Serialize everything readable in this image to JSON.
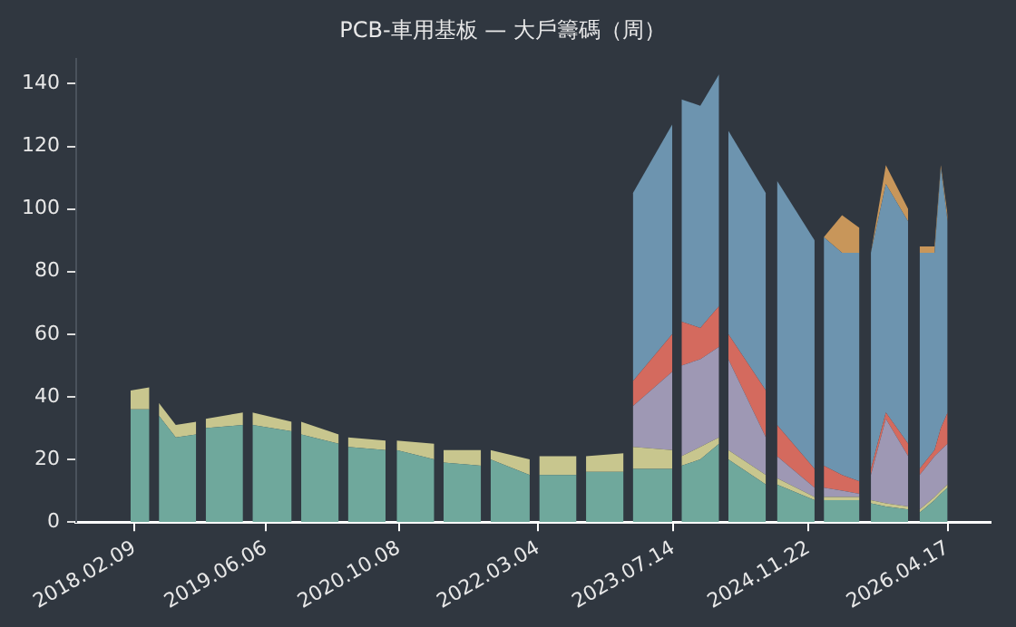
{
  "chart_data": {
    "type": "area",
    "stacked": true,
    "title": "PCB-車用基板 — 大戶籌碼（周）",
    "x": [
      "2018-01-26",
      "2018-04-05",
      "2018-04-22",
      "2018-05-10",
      "2018-07-11",
      "2018-09-24",
      "2018-10-11",
      "2018-10-29",
      "2019-03-15",
      "2019-04-02",
      "2019-04-19",
      "2019-09-10",
      "2019-09-28",
      "2019-10-15",
      "2020-03-01",
      "2020-03-18",
      "2020-04-04",
      "2020-08-20",
      "2020-09-10",
      "2020-09-30",
      "2021-02-15",
      "2021-03-04",
      "2021-03-21",
      "2021-08-06",
      "2021-08-23",
      "2021-09-10",
      "2022-02-01",
      "2022-02-18",
      "2022-03-08",
      "2022-07-23",
      "2022-08-10",
      "2022-08-27",
      "2023-01-12",
      "2023-01-29",
      "2023-02-15",
      "2023-07-10",
      "2023-07-27",
      "2023-08-13",
      "2023-10-21",
      "2023-12-29",
      "2024-01-15",
      "2024-02-01",
      "2024-06-18",
      "2024-07-09",
      "2024-07-29",
      "2024-12-14",
      "2024-12-31",
      "2025-01-17",
      "2025-03-25",
      "2025-05-28",
      "2025-06-18",
      "2025-07-09",
      "2025-09-02",
      "2025-11-23",
      "2025-12-14",
      "2026-01-04",
      "2026-02-28",
      "2026-03-23",
      "2026-04-17"
    ],
    "series": [
      {
        "color": "#6fa89c",
        "values": [
          36,
          36,
          null,
          34,
          27,
          28,
          null,
          30,
          31,
          null,
          31,
          29,
          null,
          28,
          25,
          null,
          24,
          23,
          null,
          23,
          20,
          null,
          19,
          18,
          null,
          20,
          15,
          null,
          15,
          15,
          null,
          16,
          16,
          null,
          17,
          17,
          null,
          18,
          20,
          25,
          null,
          20,
          12,
          null,
          12,
          7,
          null,
          7,
          7,
          7,
          null,
          6,
          5,
          4,
          null,
          3,
          7,
          9,
          11
        ]
      },
      {
        "color": "#c8c68e",
        "values": [
          6,
          7,
          null,
          4,
          4,
          4,
          null,
          3,
          4,
          null,
          4,
          3,
          null,
          4,
          3,
          null,
          3,
          3,
          null,
          3,
          5,
          null,
          4,
          5,
          null,
          3,
          5,
          null,
          6,
          6,
          null,
          5,
          6,
          null,
          7,
          6,
          null,
          3,
          4,
          2,
          null,
          3,
          3,
          null,
          2,
          1,
          null,
          1,
          1,
          1,
          null,
          1,
          1,
          1,
          null,
          1,
          1,
          1,
          1
        ]
      },
      {
        "color": "#9e98b4",
        "values": [
          null,
          null,
          null,
          null,
          null,
          null,
          null,
          null,
          null,
          null,
          null,
          null,
          null,
          null,
          null,
          null,
          null,
          null,
          null,
          null,
          null,
          null,
          null,
          null,
          null,
          null,
          null,
          null,
          null,
          null,
          null,
          null,
          null,
          null,
          13,
          25,
          null,
          29,
          28,
          29,
          null,
          29,
          12,
          null,
          7,
          3,
          null,
          3,
          2,
          1,
          null,
          8,
          27,
          16,
          null,
          11,
          13,
          13,
          13
        ]
      },
      {
        "color": "#d46a5e",
        "values": [
          null,
          null,
          null,
          null,
          null,
          null,
          null,
          null,
          null,
          null,
          null,
          null,
          null,
          null,
          null,
          null,
          null,
          null,
          null,
          null,
          null,
          null,
          null,
          null,
          null,
          null,
          null,
          null,
          null,
          null,
          null,
          null,
          null,
          null,
          8,
          12,
          null,
          14,
          10,
          13,
          null,
          8,
          15,
          null,
          10,
          6,
          null,
          7,
          5,
          4,
          null,
          2,
          2,
          4,
          null,
          2,
          2,
          7,
          10
        ]
      },
      {
        "color": "#6d94af",
        "values": [
          null,
          null,
          null,
          null,
          null,
          null,
          null,
          null,
          null,
          null,
          null,
          null,
          null,
          null,
          null,
          null,
          null,
          null,
          null,
          null,
          null,
          null,
          null,
          null,
          null,
          null,
          null,
          null,
          null,
          null,
          null,
          null,
          null,
          null,
          60,
          67,
          null,
          71,
          71,
          74,
          null,
          65,
          63,
          null,
          78,
          73,
          null,
          73,
          71,
          73,
          null,
          69,
          73,
          71,
          null,
          69,
          63,
          83,
          61
        ]
      },
      {
        "color": "#c8965a",
        "values": [
          null,
          null,
          null,
          null,
          null,
          null,
          null,
          null,
          null,
          null,
          null,
          null,
          null,
          null,
          null,
          null,
          null,
          null,
          null,
          null,
          null,
          null,
          null,
          null,
          null,
          null,
          null,
          null,
          null,
          null,
          null,
          null,
          null,
          null,
          null,
          null,
          null,
          null,
          null,
          null,
          null,
          null,
          null,
          null,
          null,
          null,
          null,
          0,
          12,
          8,
          null,
          0,
          6,
          4,
          null,
          2,
          2,
          1,
          2
        ]
      }
    ],
    "xlim": [
      "2017-07-10",
      "2026-09-22"
    ],
    "xticks": [
      {
        "value": "2018-02-09",
        "label": "2018.02.09"
      },
      {
        "value": "2019-06-06",
        "label": "2019.06.06"
      },
      {
        "value": "2020-10-08",
        "label": "2020.10.08"
      },
      {
        "value": "2022-03-04",
        "label": "2022.03.04"
      },
      {
        "value": "2023-07-14",
        "label": "2023.07.14"
      },
      {
        "value": "2024-11-22",
        "label": "2024.11.22"
      },
      {
        "value": "2026-04-17",
        "label": "2026.04.17"
      }
    ],
    "ylim": [
      0,
      148
    ],
    "yticks": [
      0,
      20,
      40,
      60,
      80,
      100,
      120,
      140
    ]
  }
}
